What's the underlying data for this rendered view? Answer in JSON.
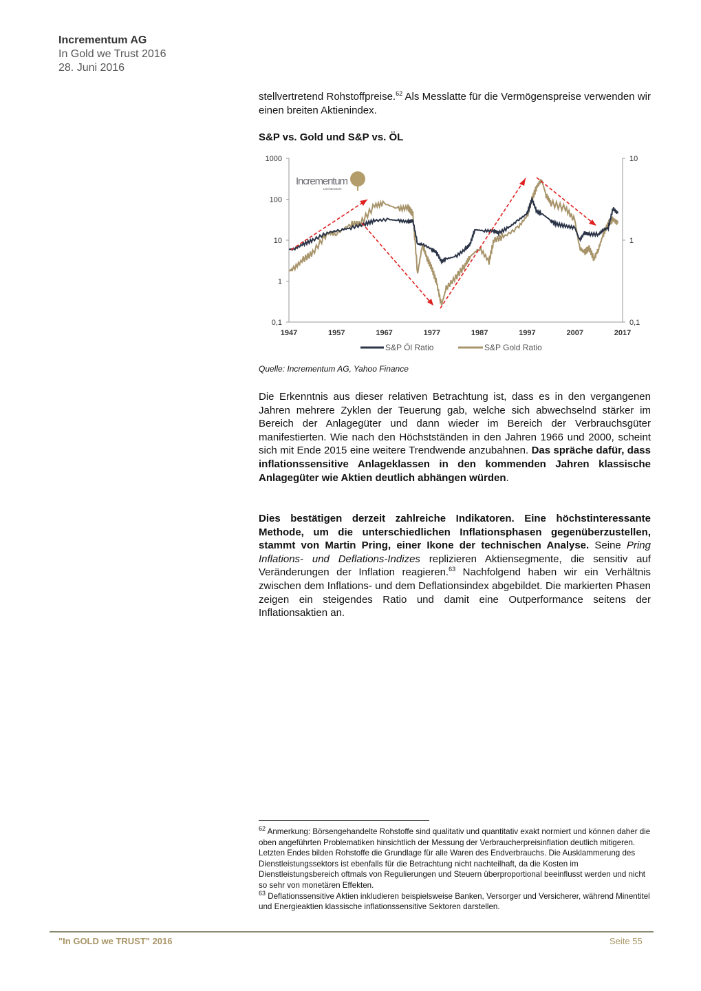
{
  "header": {
    "company": "Incrementum AG",
    "report": "In Gold we Trust 2016",
    "date": "28. Juni 2016"
  },
  "intro": {
    "text": "stellvertretend Rohstoffpreise.",
    "fn": "62",
    "text2": " Als Messlatte für die Vermögenspreise verwenden wir einen breiten Aktienindex."
  },
  "chart_title": "S&P vs. Gold und S&P vs. ÖL",
  "source": "Quelle: Incrementum AG, Yahoo Finance",
  "para1": {
    "text": "Die Erkenntnis aus dieser relativen Betrachtung ist, dass es in den vergangenen Jahren mehrere Zyklen der Teuerung gab, welche sich abwechselnd stärker im Bereich der Anlagegüter und dann wieder im Bereich der Verbrauchsgüter manifestierten. Wie nach den Höchstständen in den Jahren 1966 und 2000, scheint sich mit Ende 2015 eine weitere Trendwende anzubahnen. ",
    "bold": "Das spräche dafür, dass inflationssensitive Anlageklassen in den kommenden Jahren klassische Anlagegüter wie Aktien deutlich abhängen würden",
    "end": "."
  },
  "para2": {
    "bold": "Dies bestätigen derzeit zahlreiche Indikatoren. Eine höchstinteressante Methode, um die unterschiedlichen Inflationsphasen gegenüberzustellen, stammt von Martin Pring, einer Ikone der technischen Analyse.",
    "t1": " Seine ",
    "italic": "Pring Inflations- und Deflations-Indizes",
    "t2": " replizieren Aktiensegmente, die sensitiv auf Veränderungen der Inflation reagieren.",
    "fn": "63",
    "t3": " Nachfolgend haben wir ein Verhältnis zwischen dem Inflations- und dem Deflationsindex abgebildet. Die markierten Phasen zeigen ein steigendes Ratio und damit eine Outperformance seitens der Inflationsaktien an."
  },
  "footnotes": [
    {
      "num": "62",
      "text": " Anmerkung: Börsengehandelte Rohstoffe sind qualitativ und quantitativ exakt normiert und können daher die oben angeführten Problematiken hinsichtlich der Messung der Verbraucherpreisinflation deutlich mitigeren. Letzten Endes bilden Rohstoffe die Grundlage für alle Waren des Endverbrauchs. Die Ausklammerung des Dienstleistungssektors ist ebenfalls für die Betrachtung nicht nachteilhaft, da die Kosten im Dienstleistungsbereich oftmals von Regulierungen und Steuern überproportional beeinflusst werden und nicht so sehr von monetären Effekten."
    },
    {
      "num": "63",
      "text": " Deflationssensitive Aktien inkludieren beispielsweise Banken, Versorger und Versicherer, während Minentitel und Energieaktien klassische inflationssensitive Sektoren darstellen."
    }
  ],
  "footer": {
    "left": "\"In GOLD we TRUST\" 2016",
    "right": "Seite 55"
  },
  "chart_data": {
    "type": "line",
    "title": "",
    "log_scale": true,
    "x_ticks": [
      "1947",
      "1957",
      "1967",
      "1977",
      "1987",
      "1997",
      "2007",
      "2017"
    ],
    "xlim": [
      1947,
      2017
    ],
    "left_ticks": [
      "1000",
      "100",
      "10",
      "1",
      "0,1"
    ],
    "ylim_left": [
      0.1,
      1000
    ],
    "right_ticks": [
      "10",
      "1",
      "0,1"
    ],
    "ylim_right": [
      0.1,
      10
    ],
    "logo": {
      "name": "Incrementum",
      "sub": "Liechtenstein"
    },
    "series": [
      {
        "name": "S&P Öl Ratio",
        "axis": "left",
        "color": "#2b3447",
        "x": [
          1947,
          1948,
          1950,
          1952,
          1955,
          1958,
          1960,
          1963,
          1965,
          1968,
          1970,
          1972,
          1973,
          1974,
          1975,
          1977,
          1978,
          1979,
          1980,
          1982,
          1984,
          1985,
          1986,
          1988,
          1990,
          1991,
          1993,
          1995,
          1997,
          1998,
          1999,
          2000,
          2002,
          2003,
          2005,
          2007,
          2008,
          2009,
          2010,
          2012,
          2013,
          2014,
          2015,
          2016
        ],
        "y": [
          6,
          6,
          8,
          10,
          15,
          18,
          20,
          25,
          30,
          32,
          30,
          28,
          30,
          8,
          8,
          6,
          5,
          3,
          3.5,
          4,
          6,
          8,
          18,
          17,
          17,
          15,
          20,
          30,
          45,
          100,
          50,
          45,
          30,
          25,
          22,
          20,
          10,
          15,
          14,
          14,
          18,
          20,
          60,
          45
        ]
      },
      {
        "name": "S&P Gold Ratio",
        "axis": "right",
        "color": "#a8946a",
        "x": [
          1947,
          1948,
          1950,
          1952,
          1955,
          1957,
          1960,
          1962,
          1965,
          1967,
          1970,
          1972,
          1973,
          1974,
          1975,
          1976,
          1977,
          1978,
          1979,
          1980,
          1982,
          1984,
          1985,
          1987,
          1989,
          1990,
          1992,
          1995,
          1997,
          1998,
          1999,
          2000,
          2001,
          2002,
          2005,
          2007,
          2008,
          2009,
          2010,
          2011,
          2012,
          2013,
          2014,
          2015,
          2016
        ],
        "y": [
          0.42,
          0.45,
          0.58,
          0.7,
          1.22,
          1.2,
          1.58,
          1.6,
          2.65,
          2.8,
          2.4,
          2.5,
          2.1,
          0.39,
          0.89,
          0.6,
          0.45,
          0.3,
          0.16,
          0.26,
          0.35,
          0.5,
          0.63,
          0.8,
          0.55,
          1.0,
          1.1,
          1.41,
          2.0,
          3.16,
          4.5,
          5.48,
          3.5,
          2.83,
          2.45,
          1.73,
          0.8,
          0.71,
          0.8,
          0.59,
          0.8,
          1.2,
          1.6,
          1.8,
          1.6
        ]
      }
    ]
  }
}
